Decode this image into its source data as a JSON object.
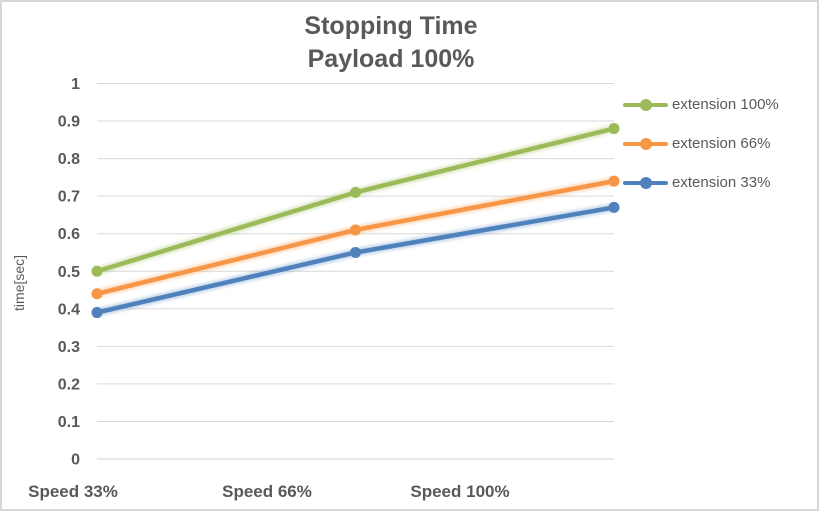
{
  "chart": {
    "title_line1": "Stopping Time",
    "title_line2": "Payload 100%",
    "ylabel": "time[sec]"
  },
  "chart_data": {
    "type": "line",
    "title": "Stopping Time",
    "subtitle": "Payload 100%",
    "categories": [
      "Speed 33%",
      "Speed 66%",
      "Speed 100%"
    ],
    "series": [
      {
        "name": "extension 100%",
        "color": "#9BBB59",
        "values": [
          0.5,
          0.71,
          0.88
        ]
      },
      {
        "name": "extension 66%",
        "color": "#F79646",
        "values": [
          0.44,
          0.61,
          0.74
        ]
      },
      {
        "name": "extension 33%",
        "color": "#4F81BD",
        "values": [
          0.39,
          0.55,
          0.67
        ]
      }
    ],
    "xlabel": "",
    "ylabel": "time[sec]",
    "ylim": [
      0,
      1
    ],
    "ytick_step": 0.1,
    "ytick_labels": [
      "0",
      "0.1",
      "0.2",
      "0.3",
      "0.4",
      "0.5",
      "0.6",
      "0.7",
      "0.8",
      "0.9",
      "1"
    ],
    "grid": true,
    "legend_position": "right",
    "marker": "circle",
    "text_color": "#595959",
    "gridline_color": "#D9D9D9"
  }
}
